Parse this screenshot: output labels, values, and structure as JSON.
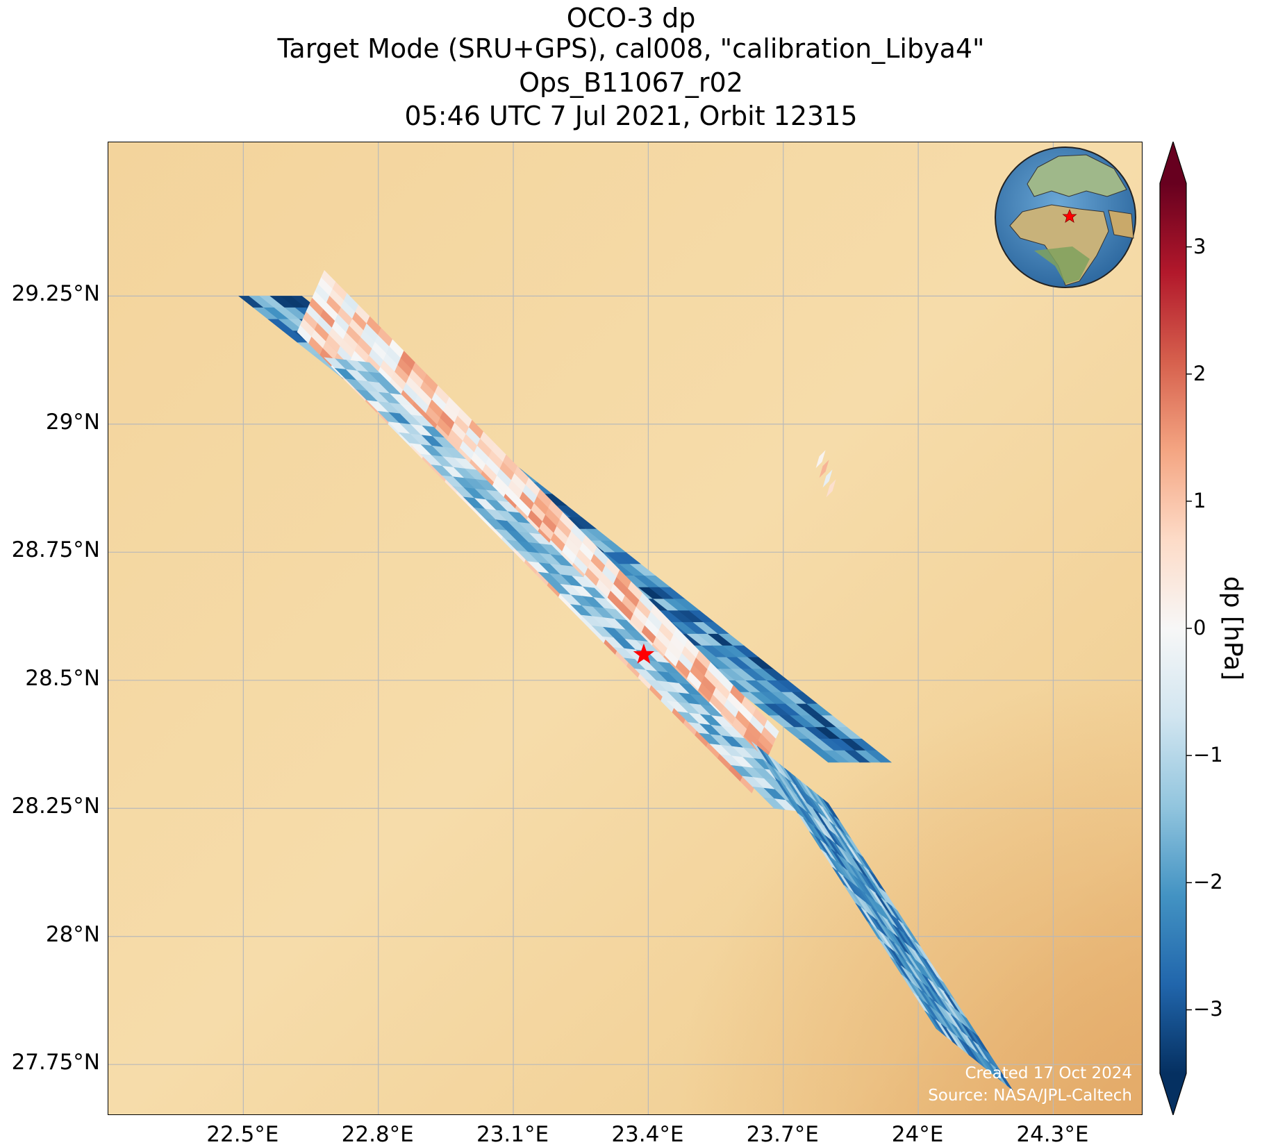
{
  "titles": {
    "line1": "OCO-3 dp",
    "line2": "Target Mode (SRU+GPS), cal008, \"calibration_Libya4\"",
    "line3": "Ops_B11067_r02",
    "line4": "05:46 UTC 7 Jul 2021, Orbit 12315"
  },
  "map": {
    "lon_range": [
      22.2,
      24.5
    ],
    "lat_range": [
      27.65,
      29.55
    ],
    "lon_ticks": [
      22.5,
      22.8,
      23.1,
      23.4,
      23.7,
      24.0,
      24.3
    ],
    "lon_tick_labels": [
      "22.5°E",
      "22.8°E",
      "23.1°E",
      "23.4°E",
      "23.7°E",
      "24°E",
      "24.3°E"
    ],
    "lat_ticks": [
      29.25,
      29.0,
      28.75,
      28.5,
      28.25,
      28.0,
      27.75
    ],
    "lat_tick_labels": [
      "29.25°N",
      "29°N",
      "28.75°N",
      "28.5°N",
      "28.25°N",
      "28°N",
      "27.75°N"
    ],
    "background_color": "#f4d7a0",
    "target": {
      "lon": 23.39,
      "lat": 28.55,
      "color": "#ff0000"
    }
  },
  "chart_data": {
    "type": "heatmap",
    "variable": "dp",
    "units": "hPa",
    "swaths": [
      {
        "start": {
          "lon": 22.49,
          "lat": 29.25
        },
        "end": {
          "lon": 23.8,
          "lat": 28.34
        },
        "across_start": {
          "lon": 22.63,
          "lat": 29.25
        },
        "rows": 40,
        "cols": 6,
        "mean_dp": -2.3
      },
      {
        "start": {
          "lon": 22.62,
          "lat": 29.18
        },
        "end": {
          "lon": 23.63,
          "lat": 28.28
        },
        "across_start": {
          "lon": 22.68,
          "lat": 29.3
        },
        "rows": 40,
        "cols": 9,
        "mean_dp": 0.6
      },
      {
        "start": {
          "lon": 22.68,
          "lat": 29.13
        },
        "end": {
          "lon": 23.68,
          "lat": 28.25
        },
        "across_start": {
          "lon": 22.78,
          "lat": 29.12
        },
        "rows": 42,
        "cols": 4,
        "mean_dp": -1.2
      },
      {
        "start": {
          "lon": 23.63,
          "lat": 28.38
        },
        "end": {
          "lon": 24.04,
          "lat": 27.82
        },
        "across_start": {
          "lon": 23.8,
          "lat": 28.26
        },
        "rows": 16,
        "cols": 14,
        "mean_dp": -1.9
      }
    ],
    "isolated_patch": {
      "lon": 23.78,
      "lat": 28.91,
      "values": [
        0.1,
        1.2,
        -0.3,
        0.6
      ]
    },
    "colorbar": {
      "label": "dp [hPa]",
      "min": -3.5,
      "max": 3.5,
      "ticks": [
        3,
        2,
        1,
        0,
        -1,
        -2,
        -3
      ],
      "tick_labels": [
        "3",
        "2",
        "1",
        "0",
        "−1",
        "−2",
        "−3"
      ],
      "colormap": "RdBu_r",
      "extend": "both"
    }
  },
  "inset": {
    "name": "globe-locator",
    "marker_color": "#ff0000"
  },
  "credits": {
    "created": "Created 17 Oct 2024",
    "source": "Source: NASA/JPL-Caltech"
  }
}
